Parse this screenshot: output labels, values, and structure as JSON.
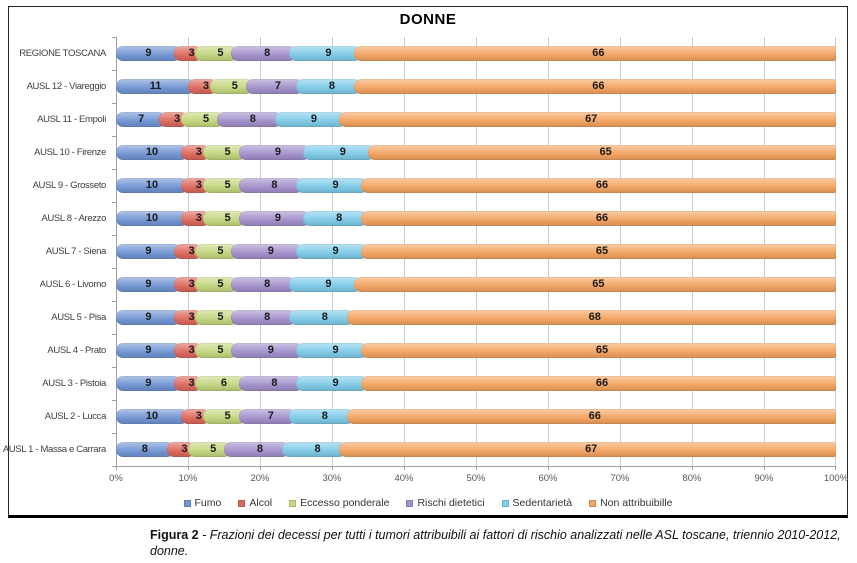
{
  "chart_data": {
    "type": "bar",
    "stacked": true,
    "orientation": "horizontal",
    "title": "DONNE",
    "categories": [
      "REGIONE TOSCANA",
      "AUSL 12 - Viareggio",
      "AUSL 11 - Empoli",
      "AUSL 10 - Firenze",
      "AUSL 9 - Grosseto",
      "AUSL 8 - Arezzo",
      "AUSL 7 - Siena",
      "AUSL 6 - Livorno",
      "AUSL 5 - Pisa",
      "AUSL 4 - Prato",
      "AUSL 3 - Pistoia",
      "AUSL 2 - Lucca",
      "AUSL 1 - Massa e Carrara"
    ],
    "series": [
      {
        "name": "Fumo",
        "color": "#7296D4",
        "values": [
          9,
          11,
          7,
          10,
          10,
          10,
          9,
          9,
          9,
          9,
          9,
          10,
          8
        ]
      },
      {
        "name": "Alcol",
        "color": "#DE6A5E",
        "values": [
          3,
          3,
          3,
          3,
          3,
          3,
          3,
          3,
          3,
          3,
          3,
          3,
          3
        ]
      },
      {
        "name": "Eccesso ponderale",
        "color": "#C5D880",
        "values": [
          5,
          5,
          5,
          5,
          5,
          5,
          5,
          5,
          5,
          5,
          6,
          5,
          5
        ]
      },
      {
        "name": "Rischi dietetici",
        "color": "#A492CC",
        "values": [
          8,
          7,
          8,
          9,
          8,
          9,
          9,
          8,
          8,
          9,
          8,
          7,
          8
        ]
      },
      {
        "name": "Sedentarietà",
        "color": "#80CCEA",
        "values": [
          9,
          8,
          9,
          9,
          9,
          8,
          9,
          9,
          8,
          9,
          9,
          8,
          8
        ]
      },
      {
        "name": "Non attribuibille",
        "color": "#F5A561",
        "values": [
          66,
          66,
          67,
          65,
          66,
          66,
          65,
          65,
          68,
          65,
          66,
          66,
          67
        ]
      }
    ],
    "x_ticks": [
      "0%",
      "10%",
      "20%",
      "30%",
      "40%",
      "50%",
      "60%",
      "70%",
      "80%",
      "90%",
      "100%"
    ],
    "xlim": [
      0,
      100
    ],
    "grid": true,
    "legend_position": "bottom",
    "value_labels": "inside"
  },
  "caption": {
    "label": "Figura 2",
    "text": " - Frazioni dei decessi per tutti i tumori attribuibili ai fattori di rischio analizzati nelle ASL toscane, triennio 2010-2012, donne."
  },
  "colors": {
    "grid": "#cbcbcb",
    "axis": "#9f9f9f",
    "segment_label": "#1a1a1a",
    "category_label": "#404040",
    "tick_label": "#555555",
    "border": "#262626"
  }
}
